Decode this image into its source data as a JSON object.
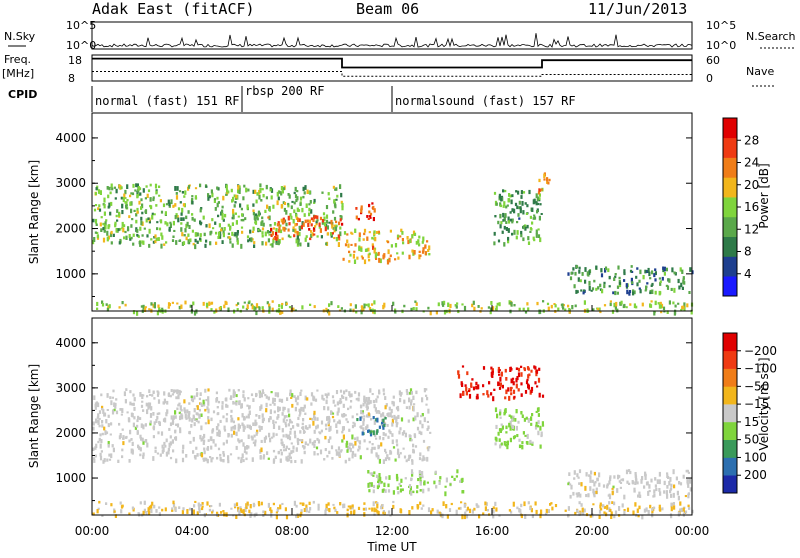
{
  "header": {
    "title": "Adak East (fitACF)",
    "beam": "Beam 06",
    "date": "11/Jun/2013"
  },
  "noise_panel": {
    "left_label": "N.Sky",
    "right_label": "N.Search",
    "left_ticks": [
      "10^5",
      "10^0"
    ],
    "right_ticks": [
      "10^5",
      "10^0"
    ]
  },
  "freq_panel": {
    "left_label_1": "Freq.",
    "left_label_2": "[MHz]",
    "right_label": "Nave",
    "left_ticks": [
      "18",
      "8"
    ],
    "right_ticks": [
      "60",
      "0"
    ],
    "freq_levels_mhz": [
      {
        "start": "00:00",
        "end": "10:00",
        "value": 16.6
      },
      {
        "start": "10:00",
        "end": "18:00",
        "value": 13.2
      },
      {
        "start": "18:00",
        "end": "24:00",
        "value": 16.0
      }
    ],
    "nave_levels": [
      {
        "start": "00:00",
        "end": "10:00",
        "value": 22
      },
      {
        "start": "10:00",
        "end": "18:00",
        "value": 11
      },
      {
        "start": "18:00",
        "end": "24:00",
        "value": 15
      }
    ]
  },
  "cpid": {
    "label": "CPID",
    "segments": [
      {
        "text": "normal (fast) 151 RF",
        "start_h": 0,
        "end_h": 6
      },
      {
        "text": "rbsp 200 RF",
        "start_h": 6,
        "end_h": 12
      },
      {
        "text": "normalsound (fast) 157 RF",
        "start_h": 12,
        "end_h": 24
      }
    ]
  },
  "chart_data": [
    {
      "type": "heatmap",
      "panel": "power",
      "ylabel": "Slant Range [km]",
      "yticks": [
        "1000",
        "2000",
        "3000",
        "4000"
      ],
      "ylim_km": [
        180,
        4550
      ],
      "xlim_hours": [
        0,
        24
      ],
      "colorbar": {
        "label": "Power [dB]",
        "ticks": [
          "4",
          "8",
          "12",
          "16",
          "20",
          "24",
          "28"
        ],
        "range": [
          0,
          32
        ],
        "colors": [
          "#1a1aff",
          "#1e3f8f",
          "#2e7a48",
          "#5aa84a",
          "#7fd43c",
          "#f2b61c",
          "#f07d18",
          "#ef3a12",
          "#e00000"
        ]
      },
      "echo_regions": [
        {
          "t0": 0.0,
          "t1": 10.0,
          "r0": 1650,
          "r1": 3000,
          "level": 14
        },
        {
          "t0": 7.0,
          "t1": 10.0,
          "r0": 1800,
          "r1": 2300,
          "level": 24
        },
        {
          "t0": 10.0,
          "t1": 13.5,
          "r0": 1300,
          "r1": 2000,
          "level": 20
        },
        {
          "t0": 10.5,
          "t1": 11.5,
          "r0": 2200,
          "r1": 2600,
          "level": 26
        },
        {
          "t0": 16.0,
          "t1": 18.0,
          "r0": 1700,
          "r1": 2900,
          "level": 12
        },
        {
          "t0": 17.8,
          "t1": 18.3,
          "r0": 2800,
          "r1": 3300,
          "level": 24
        },
        {
          "t0": 19.0,
          "t1": 24.0,
          "r0": 600,
          "r1": 1200,
          "level": 10
        },
        {
          "t0": 0.0,
          "t1": 24.0,
          "r0": 180,
          "r1": 420,
          "level": 16
        }
      ]
    },
    {
      "type": "heatmap",
      "panel": "velocity",
      "ylabel": "Slant Range [km]",
      "yticks": [
        "1000",
        "2000",
        "3000",
        "4000"
      ],
      "ylim_km": [
        180,
        4550
      ],
      "xlim_hours": [
        0,
        24
      ],
      "xlabel": "Time UT",
      "xticks": [
        "00:00",
        "04:00",
        "08:00",
        "12:00",
        "16:00",
        "20:00",
        "00:00"
      ],
      "colorbar": {
        "label": "Velocity [m s⁻¹]",
        "ticks": [
          "200",
          "100",
          "50",
          "15",
          "−15",
          "−50",
          "−100",
          "−200"
        ],
        "range": [
          -250,
          250
        ],
        "colors": [
          "#1c2aa8",
          "#2c6fb0",
          "#3a9a5a",
          "#7fd43c",
          "#c9c9c9",
          "#f2b61c",
          "#f07d18",
          "#ef3a12",
          "#e00000"
        ]
      },
      "echo_regions": [
        {
          "t0": 0.0,
          "t1": 13.5,
          "r0": 1400,
          "r1": 3000,
          "vel": 0
        },
        {
          "t0": 10.5,
          "t1": 11.8,
          "r0": 2000,
          "r1": 2400,
          "vel": 150
        },
        {
          "t0": 16.0,
          "t1": 18.0,
          "r0": 1700,
          "r1": 2600,
          "vel": 40
        },
        {
          "t0": 14.5,
          "t1": 18.0,
          "r0": 2800,
          "r1": 3500,
          "vel": -200
        },
        {
          "t0": 11.0,
          "t1": 15.0,
          "r0": 700,
          "r1": 1200,
          "vel": 40
        },
        {
          "t0": 19.0,
          "t1": 24.0,
          "r0": 600,
          "r1": 1200,
          "vel": 0
        },
        {
          "t0": 0.0,
          "t1": 24.0,
          "r0": 180,
          "r1": 500,
          "vel": -30
        }
      ]
    }
  ]
}
